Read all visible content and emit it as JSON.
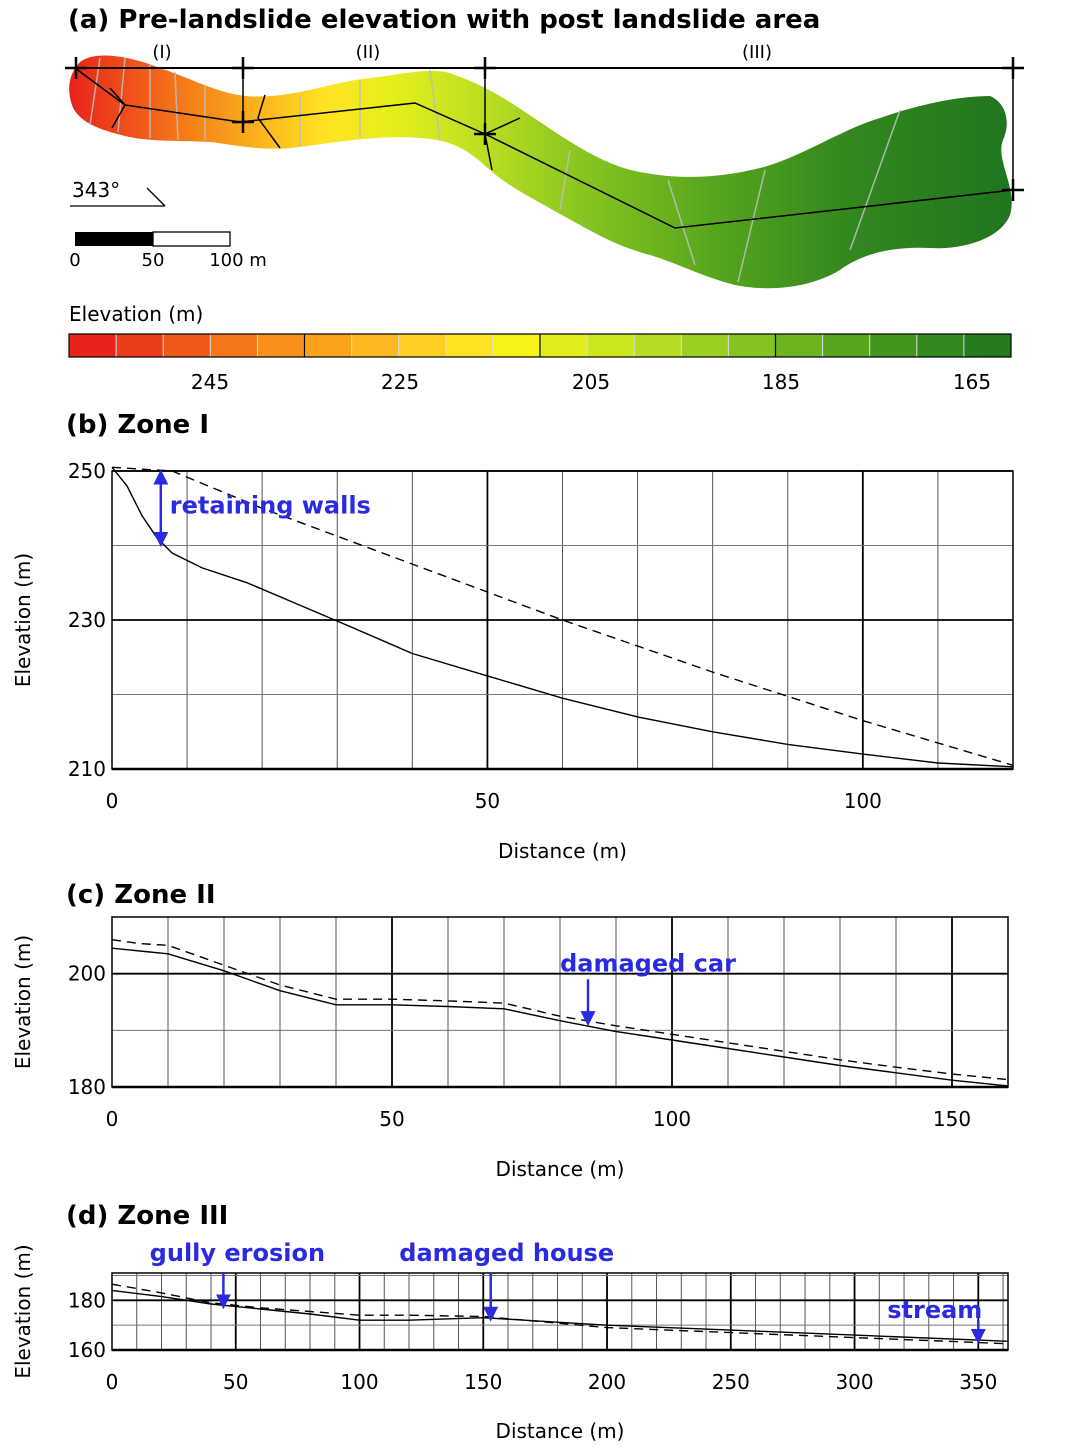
{
  "panel_a": {
    "title": "(a) Pre-landslide elevation with post landslide area",
    "zones": [
      "(I)",
      "(II)",
      "(III)"
    ],
    "direction_label": "343°",
    "scale_labels": [
      "0",
      "50",
      "100 m"
    ],
    "legend_title": "Elevation (m)",
    "legend_ticks": [
      "245",
      "225",
      "205",
      "185",
      "165"
    ],
    "legend_colors": [
      "#e8231c",
      "#ec3d1a",
      "#f05a18",
      "#f47618",
      "#f8901a",
      "#fba31d",
      "#fdb820",
      "#fecf22",
      "#ffe323",
      "#f5f318",
      "#e1ee1c",
      "#cce720",
      "#b5dc22",
      "#9bcf22",
      "#84c320",
      "#6db51e",
      "#57a61d",
      "#43961d",
      "#33881e",
      "#257b1e"
    ]
  },
  "chart_data": [
    {
      "type": "line",
      "title": "(b) Zone I",
      "xlabel": "Distance (m)",
      "ylabel": "Elevation (m)",
      "xlim": [
        0,
        120
      ],
      "ylim": [
        210,
        250
      ],
      "xticks": [
        0,
        50,
        100
      ],
      "yticks": [
        210,
        230,
        250
      ],
      "grid": true,
      "series": [
        {
          "style": "solid",
          "x": [
            0,
            2,
            4,
            6,
            8,
            12,
            18,
            25,
            32,
            40,
            50,
            60,
            70,
            80,
            90,
            100,
            110,
            120
          ],
          "y": [
            250.5,
            248,
            244,
            241,
            239,
            237,
            235,
            232,
            229,
            225.5,
            222.5,
            219.5,
            217,
            215,
            213.3,
            212,
            210.8,
            210.3
          ]
        },
        {
          "style": "dashed",
          "x": [
            0,
            8,
            20,
            40,
            60,
            80,
            100,
            120
          ],
          "y": [
            250.5,
            250,
            245,
            237.5,
            230,
            223,
            216.5,
            210.5
          ]
        }
      ],
      "annotations": [
        {
          "text": "retaining walls",
          "x": 6.5,
          "y_top": 250,
          "y_bottom": 240
        }
      ]
    },
    {
      "type": "line",
      "title": "(c) Zone II",
      "xlabel": "Distance (m)",
      "ylabel": "Elevation (m)",
      "xlim": [
        0,
        160
      ],
      "ylim": [
        180,
        210
      ],
      "xticks": [
        0,
        50,
        100,
        150
      ],
      "yticks": [
        180,
        200
      ],
      "grid": true,
      "series": [
        {
          "style": "solid",
          "x": [
            0,
            5,
            10,
            20,
            30,
            40,
            50,
            60,
            70,
            80,
            90,
            100,
            110,
            120,
            130,
            140,
            150,
            160
          ],
          "y": [
            204.5,
            204,
            203.5,
            200.5,
            197,
            194.5,
            194.5,
            194.2,
            193.8,
            191.7,
            189.8,
            188.3,
            186.8,
            185.3,
            183.8,
            182.5,
            181.2,
            180.2
          ]
        },
        {
          "style": "dashed",
          "x": [
            0,
            5,
            10,
            20,
            30,
            40,
            50,
            60,
            70,
            80,
            90,
            100,
            110,
            120,
            130,
            140,
            150,
            160
          ],
          "y": [
            206,
            205.3,
            205,
            201.5,
            198,
            195.5,
            195.5,
            195.2,
            194.8,
            192.5,
            190.8,
            189.3,
            187.8,
            186.3,
            184.8,
            183.5,
            182.3,
            181.3
          ]
        }
      ],
      "annotations": [
        {
          "text": "damaged car",
          "x": 85,
          "y_top": 199,
          "y_bottom": 191
        }
      ]
    },
    {
      "type": "line",
      "title": "(d) Zone III",
      "xlabel": "Distance (m)",
      "ylabel": "Elevation (m)",
      "xlim": [
        0,
        362
      ],
      "ylim": [
        160,
        191
      ],
      "xticks": [
        0,
        50,
        100,
        150,
        200,
        250,
        300,
        350
      ],
      "yticks": [
        160,
        180
      ],
      "grid": true,
      "series": [
        {
          "style": "solid",
          "x": [
            0,
            20,
            40,
            60,
            80,
            100,
            120,
            150,
            200,
            250,
            300,
            350,
            362
          ],
          "y": [
            184,
            181.5,
            178.5,
            176.5,
            174.5,
            172,
            172,
            173,
            170,
            168,
            166,
            164,
            163.5
          ]
        },
        {
          "style": "dashed",
          "x": [
            0,
            20,
            40,
            60,
            80,
            100,
            120,
            150,
            200,
            250,
            300,
            350,
            362
          ],
          "y": [
            186.5,
            183,
            179,
            177,
            175.5,
            174,
            174,
            173.5,
            169,
            167,
            165,
            163,
            162.5
          ]
        }
      ],
      "annotations": [
        {
          "text": "gully erosion",
          "x": 45,
          "y_top": 191,
          "y_bottom": 177
        },
        {
          "text": "damaged house",
          "x": 153,
          "y_top": 191,
          "y_bottom": 172
        },
        {
          "text": "stream",
          "x": 350,
          "y_top": 172,
          "y_bottom": 163
        }
      ]
    }
  ]
}
